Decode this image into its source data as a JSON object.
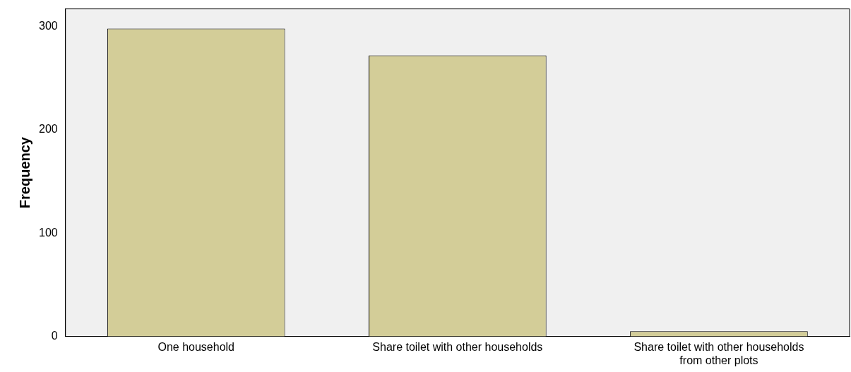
{
  "chart_data": {
    "type": "bar",
    "ylabel": "Frequency",
    "categories": [
      "One household",
      "Share toilet with other households",
      "Share toilet with other households from other plots"
    ],
    "values": [
      298,
      272,
      5
    ],
    "color": "#d3cd98",
    "ylim": [
      0,
      317
    ],
    "yticks": [
      0,
      100,
      200,
      300
    ],
    "grid": false,
    "legend": false
  }
}
